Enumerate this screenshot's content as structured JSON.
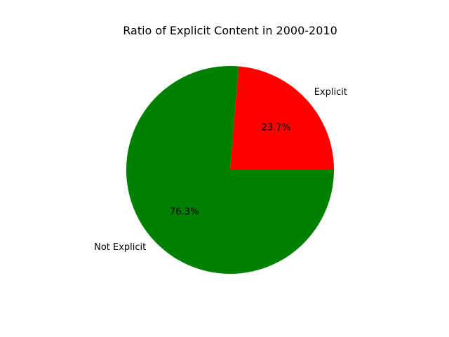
{
  "chart_data": {
    "type": "pie",
    "title": "Ratio of Explicit Content in 2000-2010",
    "slices": [
      {
        "label": "Explicit",
        "value": 23.7,
        "pct_label": "23.7%",
        "color": "#ff0000"
      },
      {
        "label": "Not Explicit",
        "value": 76.3,
        "pct_label": "76.3%",
        "color": "#008000"
      }
    ],
    "start_angle_deg": 0,
    "direction": "counterclockwise"
  }
}
